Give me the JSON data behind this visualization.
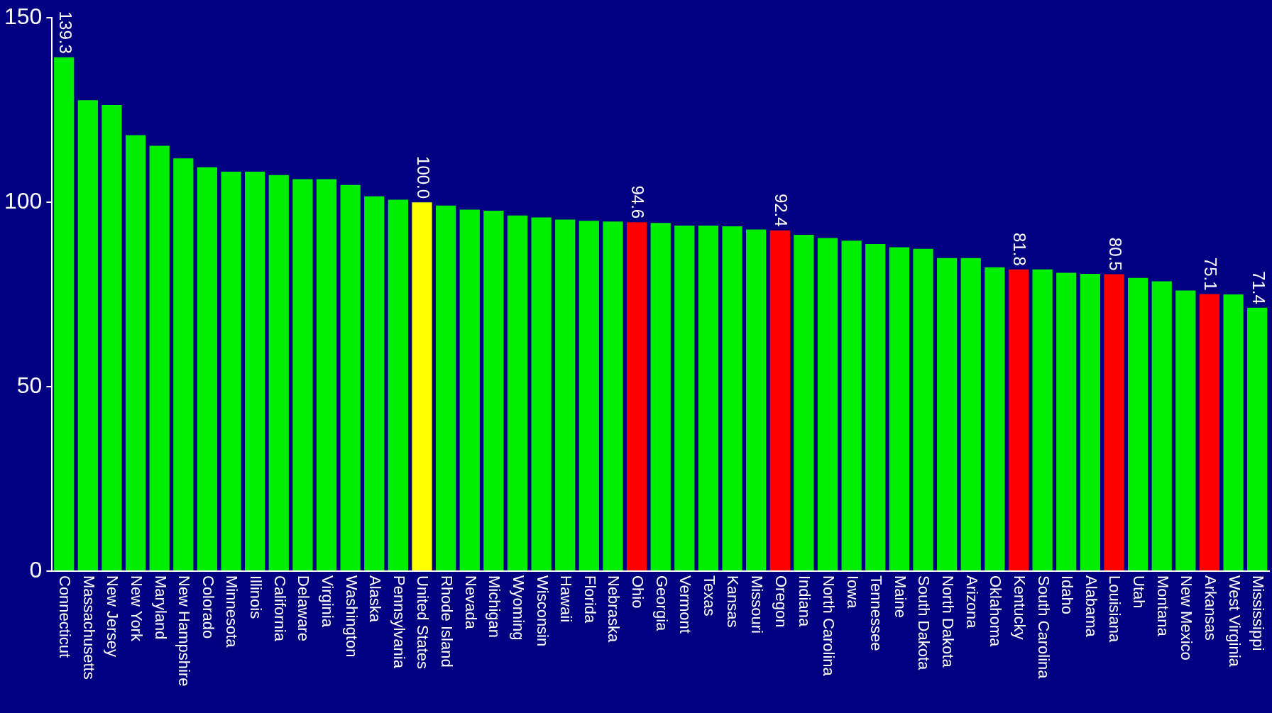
{
  "chart_data": {
    "type": "bar",
    "categories": [
      "Connecticut",
      "Massachusetts",
      "New Jersey",
      "New York",
      "Maryland",
      "New Hampshire",
      "Colorado",
      "Minnesota",
      "Illinois",
      "California",
      "Delaware",
      "Virginia",
      "Washington",
      "Alaska",
      "Pennsylvania",
      "United States",
      "Rhode Island",
      "Nevada",
      "Michigan",
      "Wyoming",
      "Wisconsin",
      "Hawaii",
      "Florida",
      "Nebraska",
      "Ohio",
      "Georgia",
      "Vermont",
      "Texas",
      "Kansas",
      "Missouri",
      "Oregon",
      "Indiana",
      "North Carolina",
      "Iowa",
      "Tennessee",
      "Maine",
      "South Dakota",
      "North Dakota",
      "Arizona",
      "Oklahoma",
      "Kentucky",
      "South Carolina",
      "Idaho",
      "Alabama",
      "Louisiana",
      "Utah",
      "Montana",
      "New Mexico",
      "Arkansas",
      "West Virginia",
      "Mississippi"
    ],
    "values": [
      139.3,
      127.7,
      126.4,
      118.2,
      115.3,
      111.9,
      109.5,
      108.3,
      108.3,
      107.4,
      106.3,
      106.3,
      104.7,
      101.6,
      100.7,
      100.0,
      99.1,
      98.0,
      97.7,
      96.4,
      95.9,
      95.3,
      95.0,
      94.8,
      94.6,
      94.4,
      93.7,
      93.7,
      93.5,
      92.6,
      92.4,
      91.2,
      90.3,
      89.6,
      88.7,
      87.8,
      87.4,
      84.9,
      84.9,
      82.4,
      81.8,
      81.8,
      80.9,
      80.6,
      80.5,
      79.5,
      78.6,
      76.1,
      75.1,
      75.0,
      71.4
    ],
    "colors": [
      "#00ee00",
      "#00ee00",
      "#00ee00",
      "#00ee00",
      "#00ee00",
      "#00ee00",
      "#00ee00",
      "#00ee00",
      "#00ee00",
      "#00ee00",
      "#00ee00",
      "#00ee00",
      "#00ee00",
      "#00ee00",
      "#00ee00",
      "#ffff00",
      "#00ee00",
      "#00ee00",
      "#00ee00",
      "#00ee00",
      "#00ee00",
      "#00ee00",
      "#00ee00",
      "#00ee00",
      "#ff0000",
      "#00ee00",
      "#00ee00",
      "#00ee00",
      "#00ee00",
      "#00ee00",
      "#ff0000",
      "#00ee00",
      "#00ee00",
      "#00ee00",
      "#00ee00",
      "#00ee00",
      "#00ee00",
      "#00ee00",
      "#00ee00",
      "#00ee00",
      "#ff0000",
      "#00ee00",
      "#00ee00",
      "#00ee00",
      "#ff0000",
      "#00ee00",
      "#00ee00",
      "#00ee00",
      "#ff0000",
      "#00ee00",
      "#00ee00"
    ],
    "value_labels": [
      "139.3",
      null,
      null,
      null,
      null,
      null,
      null,
      null,
      null,
      null,
      null,
      null,
      null,
      null,
      null,
      "100.0",
      null,
      null,
      null,
      null,
      null,
      null,
      null,
      null,
      "94.6",
      null,
      null,
      null,
      null,
      null,
      "92.4",
      null,
      null,
      null,
      null,
      null,
      null,
      null,
      null,
      null,
      "81.8",
      null,
      null,
      null,
      "80.5",
      null,
      null,
      null,
      "75.1",
      null,
      "71.4"
    ],
    "ylim": [
      0,
      150
    ],
    "yticks": [
      0,
      50,
      100,
      150
    ],
    "grid": false,
    "legend": false
  }
}
